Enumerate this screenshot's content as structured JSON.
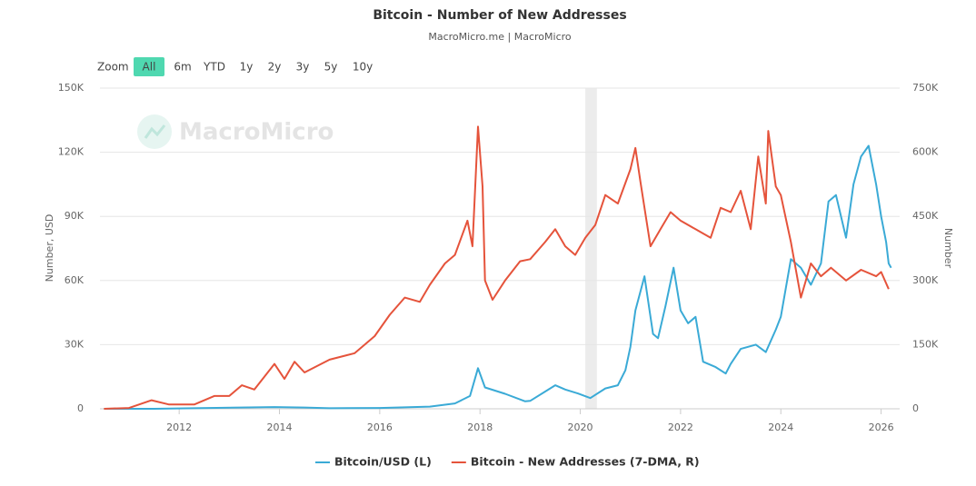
{
  "range_selector": {
    "label": "Zoom",
    "buttons": [
      "All",
      "6m",
      "YTD",
      "1y",
      "2y",
      "3y",
      "5y",
      "10y"
    ],
    "selected": 0
  },
  "chart_data": {
    "type": "line",
    "title": "Bitcoin - Number of New Addresses",
    "subtitle": "MacroMicro.me | MacroMicro",
    "watermark": "MacroMicro",
    "y_label": "Number, USD",
    "y2_label": "Number",
    "xlim": [
      2010.42,
      2026.37
    ],
    "xticks": [
      2012,
      2014,
      2016,
      2018,
      2020,
      2022,
      2024,
      2026
    ],
    "ylim": [
      0,
      150000
    ],
    "yticks": [
      {
        "value": 0,
        "label": "0"
      },
      {
        "value": 30000,
        "label": "30K"
      },
      {
        "value": 60000,
        "label": "60K"
      },
      {
        "value": 90000,
        "label": "90K"
      },
      {
        "value": 120000,
        "label": "120K"
      },
      {
        "value": 150000,
        "label": "150K"
      }
    ],
    "y2lim": [
      0,
      750000
    ],
    "y2ticks": [
      {
        "value": 0,
        "label": "0"
      },
      {
        "value": 150000,
        "label": "150K"
      },
      {
        "value": 300000,
        "label": "300K"
      },
      {
        "value": 450000,
        "label": "450K"
      },
      {
        "value": 600000,
        "label": "600K"
      },
      {
        "value": 750000,
        "label": "750K"
      }
    ],
    "grid": true,
    "highlight_band": [
      2020.1,
      2020.33
    ],
    "legend": "bottom",
    "series": [
      {
        "name": "Bitcoin/USD (L)",
        "color": "#3aaad6",
        "axis": "y",
        "x": [
          2010.5,
          2011.5,
          2013.9,
          2014.5,
          2015.0,
          2016.0,
          2017.0,
          2017.5,
          2017.8,
          2017.96,
          2018.1,
          2018.5,
          2018.9,
          2019.0,
          2019.5,
          2019.7,
          2019.95,
          2020.2,
          2020.5,
          2020.75,
          2020.9,
          2021.0,
          2021.1,
          2021.28,
          2021.45,
          2021.55,
          2021.7,
          2021.86,
          2022.0,
          2022.15,
          2022.3,
          2022.45,
          2022.7,
          2022.9,
          2023.0,
          2023.2,
          2023.5,
          2023.7,
          2023.9,
          2024.0,
          2024.2,
          2024.4,
          2024.6,
          2024.8,
          2024.95,
          2025.1,
          2025.3,
          2025.45,
          2025.6,
          2025.75,
          2025.9,
          2026.0,
          2026.1,
          2026.15,
          2026.2
        ],
        "values": [
          0,
          15,
          800,
          600,
          250,
          400,
          1000,
          2500,
          6000,
          19000,
          10000,
          7000,
          3500,
          3700,
          11000,
          9000,
          7200,
          5000,
          9500,
          11000,
          18000,
          29000,
          46000,
          62000,
          35000,
          33000,
          48000,
          66000,
          46000,
          40000,
          43000,
          22000,
          19500,
          16500,
          21000,
          28000,
          30000,
          26500,
          37000,
          43000,
          70000,
          66000,
          58000,
          68000,
          97000,
          100000,
          80000,
          105000,
          118000,
          123000,
          105000,
          90000,
          78000,
          68000,
          66000
        ]
      },
      {
        "name": "Bitcoin - New Addresses (7-DMA, R)",
        "color": "#e5533b",
        "axis": "y2",
        "x": [
          2010.5,
          2011.0,
          2011.45,
          2011.8,
          2012.3,
          2012.7,
          2013.0,
          2013.25,
          2013.5,
          2013.9,
          2014.1,
          2014.3,
          2014.5,
          2015.0,
          2015.5,
          2015.9,
          2016.2,
          2016.5,
          2016.8,
          2017.0,
          2017.3,
          2017.5,
          2017.75,
          2017.85,
          2017.96,
          2018.05,
          2018.1,
          2018.25,
          2018.5,
          2018.8,
          2019.0,
          2019.3,
          2019.5,
          2019.7,
          2019.9,
          2020.1,
          2020.3,
          2020.5,
          2020.75,
          2021.0,
          2021.1,
          2021.2,
          2021.4,
          2021.6,
          2021.8,
          2022.0,
          2022.3,
          2022.6,
          2022.8,
          2023.0,
          2023.2,
          2023.4,
          2023.55,
          2023.7,
          2023.75,
          2023.9,
          2024.0,
          2024.2,
          2024.4,
          2024.6,
          2024.8,
          2025.0,
          2025.3,
          2025.6,
          2025.9,
          2026.0,
          2026.15
        ],
        "values": [
          0,
          2000,
          20000,
          10000,
          10000,
          30000,
          30000,
          55000,
          45000,
          105000,
          70000,
          110000,
          85000,
          115000,
          130000,
          170000,
          220000,
          260000,
          250000,
          290000,
          340000,
          360000,
          440000,
          380000,
          660000,
          520000,
          300000,
          255000,
          300000,
          345000,
          350000,
          390000,
          420000,
          380000,
          360000,
          400000,
          430000,
          500000,
          480000,
          560000,
          610000,
          530000,
          380000,
          420000,
          460000,
          440000,
          420000,
          400000,
          470000,
          460000,
          510000,
          420000,
          590000,
          480000,
          650000,
          520000,
          500000,
          390000,
          260000,
          340000,
          310000,
          330000,
          300000,
          325000,
          310000,
          320000,
          280000
        ]
      }
    ]
  }
}
